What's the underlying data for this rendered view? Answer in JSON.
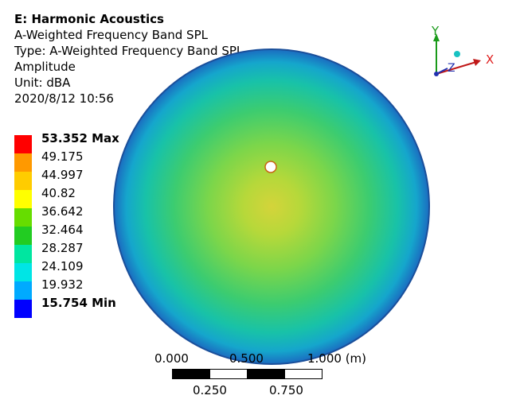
{
  "header": {
    "title": "E: Harmonic Acoustics",
    "result": "A-Weighted Frequency Band SPL",
    "type_line": "Type: A-Weighted Frequency Band SPL",
    "quantity": "Amplitude",
    "unit_line": "Unit: dBA",
    "timestamp": "2020/8/12 10:56"
  },
  "legend": {
    "entries": [
      {
        "label": "53.352 Max",
        "color": "#ff0000",
        "bold": true
      },
      {
        "label": "49.175",
        "color": "#ff9900",
        "bold": false
      },
      {
        "label": "44.997",
        "color": "#ffcc00",
        "bold": false
      },
      {
        "label": "40.82",
        "color": "#ffff00",
        "bold": false
      },
      {
        "label": "36.642",
        "color": "#66dd00",
        "bold": false
      },
      {
        "label": "32.464",
        "color": "#22cc22",
        "bold": false
      },
      {
        "label": "28.287",
        "color": "#00e6a0",
        "bold": false
      },
      {
        "label": "24.109",
        "color": "#00e5e5",
        "bold": false
      },
      {
        "label": "19.932",
        "color": "#00aaff",
        "bold": false
      },
      {
        "label": "15.754 Min",
        "color": "#0000ff",
        "bold": true
      }
    ]
  },
  "triad": {
    "x_label": "X",
    "y_label": "Y",
    "z_label": "Z"
  },
  "scalebar": {
    "top_labels": [
      "0.000",
      "0.500",
      "1.000 (m)"
    ],
    "bottom_labels": [
      "0.250",
      "0.750"
    ]
  },
  "colors": {
    "plate_outer": "#1f78c8",
    "plate_mid": "#1ec8a0",
    "plate_inner": "#7fd84a",
    "plate_center": "#c8d83a"
  }
}
